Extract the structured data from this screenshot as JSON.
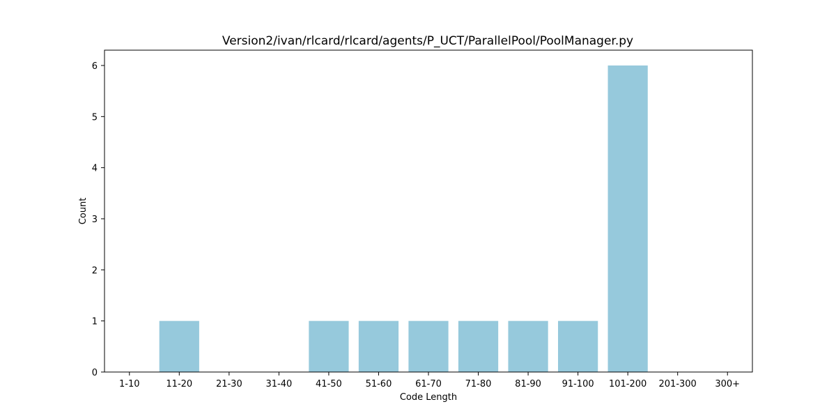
{
  "chart_data": {
    "type": "bar",
    "title": "Version2/ivan/rlcard/rlcard/agents/P_UCT/ParallelPool/PoolManager.py",
    "xlabel": "Code Length",
    "ylabel": "Count",
    "categories": [
      "1-10",
      "11-20",
      "21-30",
      "31-40",
      "41-50",
      "51-60",
      "61-70",
      "71-80",
      "81-90",
      "91-100",
      "101-200",
      "201-300",
      "300+"
    ],
    "values": [
      0,
      1,
      0,
      0,
      1,
      1,
      1,
      1,
      1,
      1,
      6,
      0,
      0
    ],
    "ylim": [
      0,
      6.3
    ],
    "yticks": [
      0,
      1,
      2,
      3,
      4,
      5,
      6
    ],
    "bar_color": "#96c9dc",
    "grid": false,
    "legend": false
  }
}
